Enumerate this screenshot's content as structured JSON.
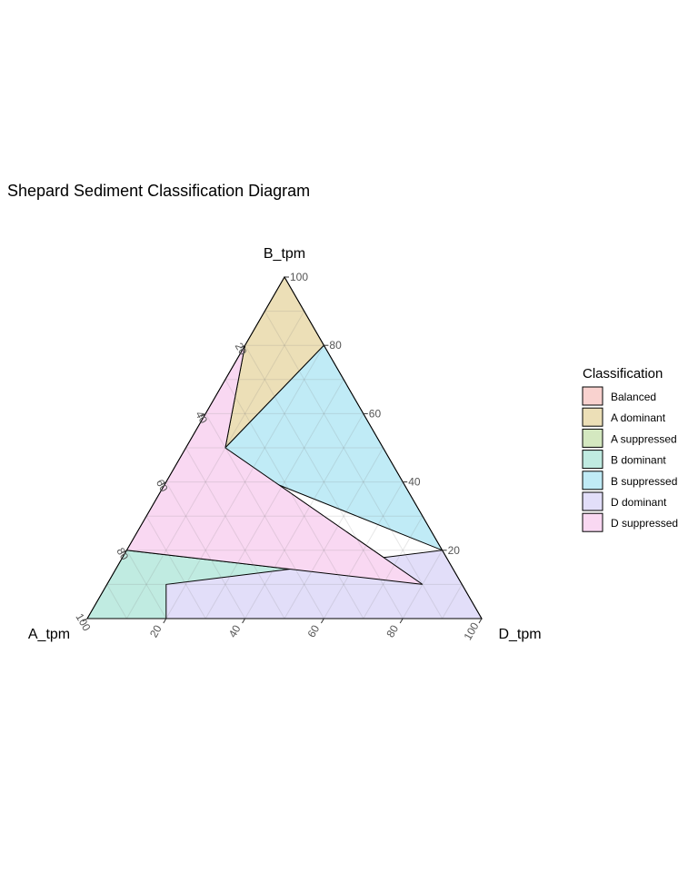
{
  "title": "Shepard Sediment Classification Diagram",
  "axes": {
    "left": "A_tpm",
    "top": "B_tpm",
    "right": "D_tpm"
  },
  "legend": {
    "title": "Classification",
    "placement": "right"
  },
  "chart_data": {
    "type": "ternary",
    "title": "Shepard Sediment Classification Diagram",
    "axis_labels": {
      "A": "A_tpm",
      "B": "B_tpm",
      "D": "D_tpm"
    },
    "ticks": [
      20,
      40,
      60,
      80,
      100
    ],
    "grid": true,
    "regions": [
      {
        "name": "Balanced",
        "color": "#f9d2cf",
        "vertices": [
          [
            40,
            50,
            10
          ],
          [
            10,
            10,
            80
          ],
          [
            75,
            10,
            15
          ]
        ]
      },
      {
        "name": "A dominant",
        "color": "#ecdfb7",
        "vertices": [
          [
            20,
            80,
            0
          ],
          [
            0,
            100,
            0
          ],
          [
            0,
            80,
            20
          ],
          [
            40,
            50,
            10
          ]
        ]
      },
      {
        "name": "A suppressed",
        "color": "#d4e8c0",
        "vertices": [
          [
            22,
            0,
            78
          ],
          [
            10,
            10,
            80
          ],
          [
            75,
            10,
            15
          ],
          [
            80,
            0,
            20
          ]
        ]
      },
      {
        "name": "B dominant",
        "color": "#c0ebe1",
        "vertices": [
          [
            80,
            20,
            0
          ],
          [
            100,
            0,
            0
          ],
          [
            22,
            0,
            78
          ],
          [
            10,
            10,
            80
          ]
        ]
      },
      {
        "name": "B suppressed",
        "color": "#c0ebf6",
        "vertices": [
          [
            60,
            60,
            0
          ],
          [
            40,
            50,
            10
          ],
          [
            0,
            80,
            20
          ],
          [
            0,
            20,
            80
          ]
        ]
      },
      {
        "name": "D dominant",
        "color": "#e2def9",
        "vertices": [
          [
            0,
            20,
            80
          ],
          [
            0,
            0,
            100
          ],
          [
            80,
            0,
            20
          ],
          [
            75,
            10,
            15
          ]
        ]
      },
      {
        "name": "D suppressed",
        "color": "#f9d8f2",
        "vertices": [
          [
            20,
            80,
            0
          ],
          [
            40,
            50,
            10
          ],
          [
            10,
            10,
            80
          ],
          [
            80,
            20,
            0
          ]
        ]
      }
    ]
  }
}
